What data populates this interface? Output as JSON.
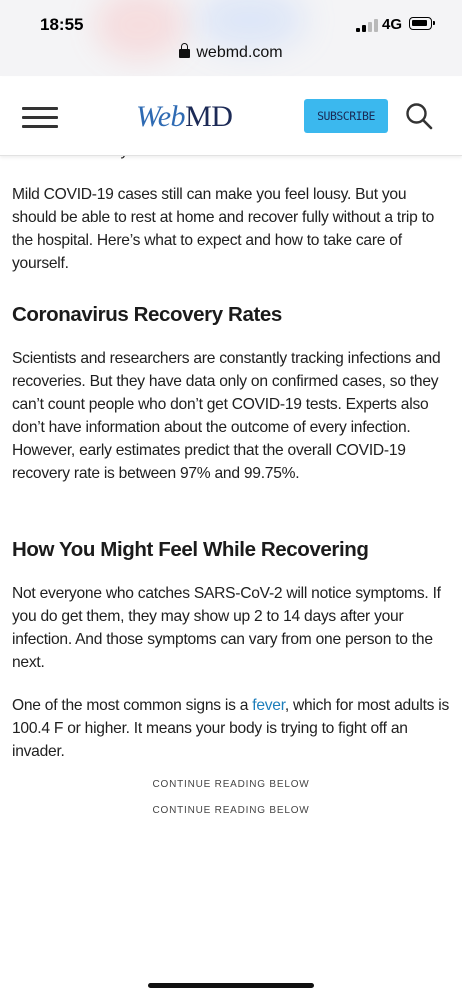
{
  "status_bar": {
    "time": "18:55",
    "network": "4G",
    "icons": [
      "signal-icon",
      "battery-icon"
    ]
  },
  "browser": {
    "url": "webmd.com",
    "icons": [
      "lock-icon"
    ]
  },
  "header": {
    "logo_web": "Web",
    "logo_md": "MD",
    "subscribe_label": "SUBSCRIBE",
    "icons": [
      "menu-icon",
      "search-icon"
    ],
    "subscribe_color": "#3bb8ee",
    "logo_web_color": "#2f6bb3",
    "logo_md_color": "#1c2a56"
  },
  "article": {
    "cut_off_line": "But what exactly does that mean?",
    "paragraph_1": "Mild COVID-19 cases still can make you feel lousy. But you should be able to rest at home and recover fully without a trip to the hospital. Here’s what to expect and how to take care of yourself.",
    "heading_1": "Coronavirus Recovery Rates",
    "paragraph_2": "Scientists and researchers are constantly tracking infections and recoveries. But they have data only on confirmed cases, so they can’t count people who don’t get COVID-19 tests. Experts also don’t have information about the outcome of every infection. However, early estimates predict that the overall COVID-19 recovery rate is between 97% and 99.75%.",
    "heading_2": "How You Might Feel While Recovering",
    "paragraph_3": "Not everyone who catches SARS-CoV-2 will notice symptoms. If you do get them, they may show up 2 to 14 days after your infection. And those symptoms can vary from one person to the next.",
    "paragraph_4_before": "One of the most common signs is a ",
    "paragraph_4_link": "fever",
    "paragraph_4_after": ", which for most adults is 100.4 F or higher. It means your body is trying to fight off an invader.",
    "continue_1": "CONTINUE READING BELOW",
    "continue_2": "CONTINUE READING BELOW",
    "link_color": "#1d7ebb"
  }
}
